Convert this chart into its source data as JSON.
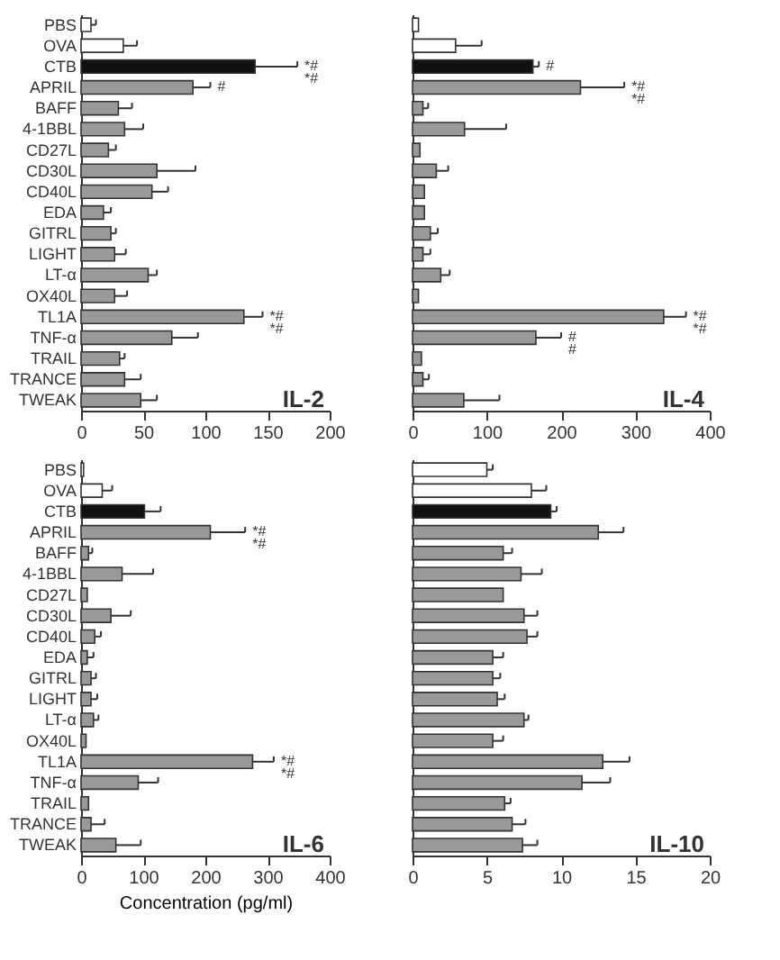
{
  "chart_data": [
    {
      "type": "bar",
      "orientation": "horizontal",
      "title": "IL-2",
      "categories": [
        "PBS",
        "OVA",
        "CTB",
        "APRIL",
        "BAFF",
        "4-1BBL",
        "CD27L",
        "CD30L",
        "CD40L",
        "EDA",
        "GITRL",
        "LIGHT",
        "LT-α",
        "OX40L",
        "TL1A",
        "TNF-α",
        "TRAIL",
        "TRANCE",
        "TWEAK"
      ],
      "values": [
        8,
        34,
        140,
        90,
        30,
        35,
        22,
        61,
        57,
        18,
        24,
        27,
        54,
        27,
        131,
        73,
        31,
        35,
        48
      ],
      "errors": [
        [
          8,
          12
        ],
        [
          34,
          45
        ],
        [
          140,
          174
        ],
        [
          90,
          104
        ],
        [
          30,
          41
        ],
        [
          35,
          50
        ],
        [
          22,
          28
        ],
        [
          61,
          92
        ],
        [
          57,
          70
        ],
        [
          18,
          24
        ],
        [
          24,
          28
        ],
        [
          27,
          36
        ],
        [
          54,
          61
        ],
        [
          27,
          37
        ],
        [
          131,
          146
        ],
        [
          73,
          94
        ],
        [
          31,
          35
        ],
        [
          35,
          48
        ],
        [
          48,
          61
        ]
      ],
      "colors": [
        "#ffffff",
        "#ffffff",
        "#111111",
        "#999999",
        "#999999",
        "#999999",
        "#999999",
        "#999999",
        "#999999",
        "#999999",
        "#999999",
        "#999999",
        "#999999",
        "#999999",
        "#999999",
        "#999999",
        "#999999",
        "#999999",
        "#999999"
      ],
      "xlim": [
        0,
        200
      ],
      "xticks": [
        0,
        50,
        100,
        150,
        200
      ],
      "annotations": [
        {
          "text": "*#\n*#",
          "x": 174,
          "y": "CTB"
        },
        {
          "text": "#",
          "x": 104,
          "y": "APRIL"
        },
        {
          "text": "*#\n*#",
          "x": 146,
          "y": "TL1A"
        }
      ]
    },
    {
      "type": "bar",
      "orientation": "horizontal",
      "title": "IL-4",
      "tick_labels": "x",
      "categories": [
        "PBS",
        "OVA",
        "CTB",
        "APRIL",
        "BAFF",
        "4-1BBL",
        "CD27L",
        "CD30L",
        "CD40L",
        "EDA",
        "GITRL",
        "LIGHT",
        "LT-α",
        "OX40L",
        "TL1A",
        "TNF-α",
        "TRAIL",
        "TRANCE",
        "TWEAK"
      ],
      "values": [
        8,
        58,
        162,
        226,
        14,
        70,
        10,
        32,
        16,
        16,
        24,
        14,
        38,
        8,
        338,
        166,
        12,
        14,
        69
      ],
      "errors": [
        null,
        [
          58,
          93
        ],
        [
          162,
          170
        ],
        [
          226,
          285
        ],
        [
          14,
          21
        ],
        [
          70,
          126
        ],
        null,
        [
          32,
          48
        ],
        null,
        null,
        [
          24,
          34
        ],
        [
          14,
          24
        ],
        [
          38,
          50
        ],
        null,
        [
          338,
          368
        ],
        [
          166,
          200
        ],
        null,
        [
          14,
          22
        ],
        [
          69,
          117
        ]
      ],
      "colors": [
        "#ffffff",
        "#ffffff",
        "#111111",
        "#999999",
        "#999999",
        "#999999",
        "#999999",
        "#999999",
        "#999999",
        "#999999",
        "#999999",
        "#999999",
        "#999999",
        "#999999",
        "#999999",
        "#999999",
        "#999999",
        "#999999",
        "#999999"
      ],
      "xlim": [
        0,
        400
      ],
      "xticks": [
        0,
        100,
        200,
        300,
        400
      ],
      "annotations": [
        {
          "text": "#",
          "x": 170,
          "y": "CTB"
        },
        {
          "text": "*#\n*#",
          "x": 285,
          "y": "APRIL"
        },
        {
          "text": "*#\n*#",
          "x": 368,
          "y": "TL1A"
        },
        {
          "text": "#\n#",
          "x": 200,
          "y": "TNF-α"
        }
      ]
    },
    {
      "type": "bar",
      "orientation": "horizontal",
      "title": "IL-6",
      "xlabel": "Concentration (pg/ml)",
      "categories": [
        "PBS",
        "OVA",
        "CTB",
        "APRIL",
        "BAFF",
        "4-1BBL",
        "CD27L",
        "CD30L",
        "CD40L",
        "EDA",
        "GITRL",
        "LIGHT",
        "LT-α",
        "OX40L",
        "TL1A",
        "TNF-α",
        "TRAIL",
        "TRANCE",
        "TWEAK"
      ],
      "values": [
        4,
        34,
        102,
        208,
        12,
        66,
        10,
        48,
        22,
        10,
        16,
        16,
        20,
        8,
        276,
        92,
        12,
        16,
        56
      ],
      "errors": [
        null,
        [
          34,
          50
        ],
        [
          102,
          128
        ],
        [
          208,
          264
        ],
        [
          12,
          18
        ],
        [
          66,
          116
        ],
        null,
        [
          48,
          80
        ],
        [
          22,
          32
        ],
        [
          10,
          20
        ],
        [
          16,
          24
        ],
        [
          16,
          26
        ],
        [
          20,
          28
        ],
        null,
        [
          276,
          310
        ],
        [
          92,
          124
        ],
        null,
        [
          16,
          38
        ],
        [
          56,
          96
        ]
      ],
      "colors": [
        "#ffffff",
        "#ffffff",
        "#111111",
        "#999999",
        "#999999",
        "#999999",
        "#999999",
        "#999999",
        "#999999",
        "#999999",
        "#999999",
        "#999999",
        "#999999",
        "#999999",
        "#999999",
        "#999999",
        "#999999",
        "#999999",
        "#999999"
      ],
      "xlim": [
        0,
        400
      ],
      "xticks": [
        0,
        100,
        200,
        300,
        400
      ],
      "annotations": [
        {
          "text": "*#\n*#",
          "x": 264,
          "y": "APRIL"
        },
        {
          "text": "*#\n*#",
          "x": 310,
          "y": "TL1A"
        }
      ]
    },
    {
      "type": "bar",
      "orientation": "horizontal",
      "title": "IL-10",
      "tick_labels": "x",
      "categories": [
        "PBS",
        "OVA",
        "CTB",
        "APRIL",
        "BAFF",
        "4-1BBL",
        "CD27L",
        "CD30L",
        "CD40L",
        "EDA",
        "GITRL",
        "LIGHT",
        "LT-α",
        "OX40L",
        "TL1A",
        "TNF-α",
        "TRAIL",
        "TRANCE",
        "TWEAK"
      ],
      "values": [
        5.0,
        8.0,
        9.3,
        12.5,
        6.1,
        7.3,
        6.1,
        7.5,
        7.7,
        5.4,
        5.4,
        5.7,
        7.5,
        5.4,
        12.8,
        11.4,
        6.2,
        6.7,
        7.4
      ],
      "errors": [
        [
          5.0,
          5.4
        ],
        [
          8.0,
          9.0
        ],
        [
          9.3,
          9.7
        ],
        [
          12.5,
          14.2
        ],
        [
          6.1,
          6.7
        ],
        [
          7.3,
          8.7
        ],
        null,
        [
          7.5,
          8.4
        ],
        [
          7.7,
          8.4
        ],
        [
          5.4,
          6.1
        ],
        [
          5.4,
          5.9
        ],
        [
          5.7,
          6.2
        ],
        [
          7.5,
          7.8
        ],
        [
          5.4,
          6.1
        ],
        [
          12.8,
          14.6
        ],
        [
          11.4,
          13.3
        ],
        [
          6.2,
          6.6
        ],
        [
          6.7,
          7.6
        ],
        [
          7.4,
          8.4
        ]
      ],
      "colors": [
        "#ffffff",
        "#ffffff",
        "#111111",
        "#999999",
        "#999999",
        "#999999",
        "#999999",
        "#999999",
        "#999999",
        "#999999",
        "#999999",
        "#999999",
        "#999999",
        "#999999",
        "#999999",
        "#999999",
        "#999999",
        "#999999",
        "#999999"
      ],
      "xlim": [
        0,
        20
      ],
      "xticks": [
        0,
        5,
        10,
        15,
        20
      ]
    }
  ]
}
